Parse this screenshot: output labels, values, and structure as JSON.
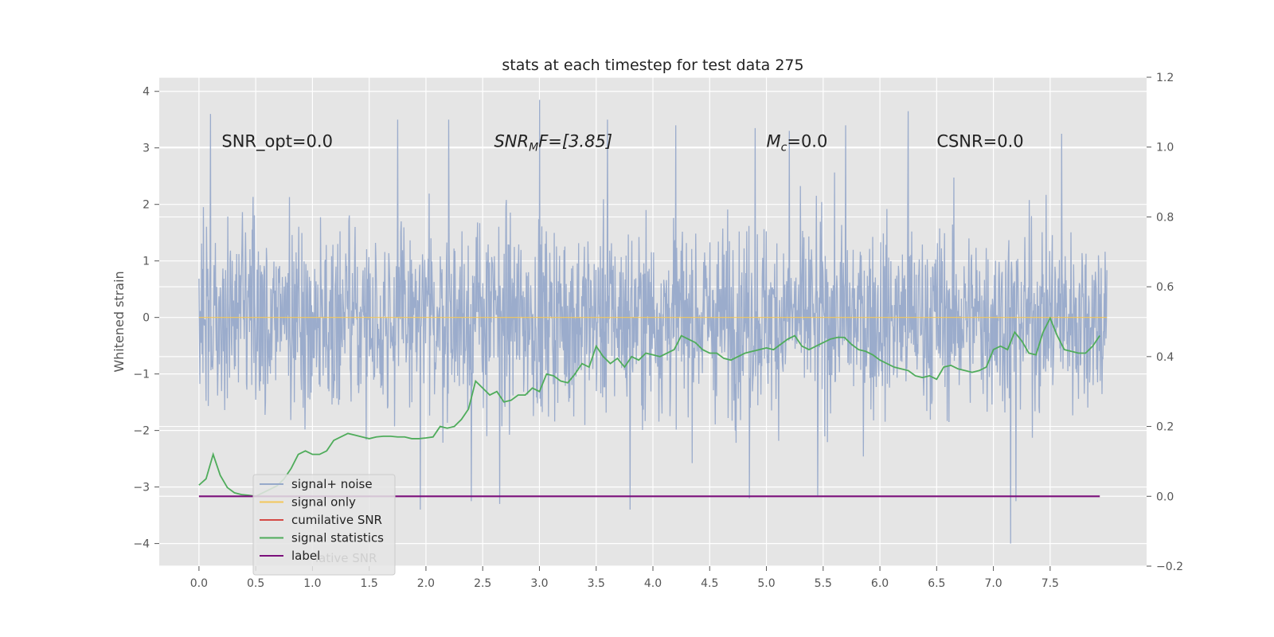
{
  "chart_data": {
    "type": "line",
    "title": "stats at each timestep for test data 275",
    "ylabel": "Whitened strain",
    "xlim": [
      -0.35,
      8.35
    ],
    "ylim": [
      -4.4,
      4.25
    ],
    "y2lim": [
      -0.2,
      1.2
    ],
    "x_ticks": [
      "0.0",
      "0.5",
      "1.0",
      "1.5",
      "2.0",
      "2.5",
      "3.0",
      "3.5",
      "4.0",
      "4.5",
      "5.0",
      "5.5",
      "6.0",
      "6.5",
      "7.0",
      "7.5"
    ],
    "y_ticks": [
      "4",
      "3",
      "2",
      "1",
      "0",
      "−1",
      "−2",
      "−3",
      "−4"
    ],
    "y2_ticks": [
      "1.2",
      "1.0",
      "0.8",
      "0.6",
      "0.4",
      "0.2",
      "0.0",
      "−0.2"
    ],
    "grid": true,
    "legend_placement": "lower-left",
    "annotations": [
      {
        "text": "SNR_opt=0.0",
        "x": 0.2,
        "y": 3.0
      },
      {
        "base": "SNR",
        "sub": "M",
        "rest": "F=[3.85]",
        "x": 2.6,
        "y": 3.0
      },
      {
        "base": "M",
        "sub": "c",
        "rest": "=0.0",
        "x": 5.0,
        "y": 3.0
      },
      {
        "text": "CSNR=0.0",
        "x": 6.5,
        "y": 3.0
      }
    ],
    "series": [
      {
        "name": "signal+ noise",
        "axis": "left",
        "color": "#97a9ca",
        "x_range": [
          0.0,
          8.0
        ],
        "samples": 2048,
        "y_range": [
          -4.0,
          3.85
        ],
        "peaks": [
          [
            0.1,
            3.6
          ],
          [
            1.75,
            3.5
          ],
          [
            2.2,
            3.5
          ],
          [
            3.0,
            3.85
          ],
          [
            3.6,
            3.5
          ],
          [
            4.2,
            3.4
          ],
          [
            4.9,
            3.35
          ],
          [
            5.2,
            3.3
          ],
          [
            5.7,
            3.4
          ],
          [
            6.25,
            3.65
          ],
          [
            7.6,
            3.25
          ]
        ],
        "troughs": [
          [
            1.95,
            -3.4
          ],
          [
            2.4,
            -3.25
          ],
          [
            2.65,
            -3.3
          ],
          [
            3.8,
            -3.4
          ],
          [
            4.85,
            -3.2
          ],
          [
            5.45,
            -3.15
          ],
          [
            7.15,
            -4.0
          ],
          [
            7.2,
            -3.25
          ]
        ]
      },
      {
        "name": "signal only",
        "axis": "left",
        "color": "#f2c75c",
        "x": [
          0.0,
          8.0
        ],
        "values": [
          0.0,
          0.0
        ]
      },
      {
        "name": "cumilative SNR",
        "axis": "right",
        "color": "#d44a45",
        "x": [],
        "values": []
      },
      {
        "name": "signal statistics",
        "axis": "right",
        "color": "#4fac5b",
        "x": [
          0.0,
          0.0625,
          0.125,
          0.1875,
          0.25,
          0.3125,
          0.375,
          0.4375,
          0.5,
          0.5625,
          0.625,
          0.6875,
          0.75,
          0.8125,
          0.875,
          0.9375,
          1.0,
          1.0625,
          1.125,
          1.1875,
          1.25,
          1.3125,
          1.375,
          1.4375,
          1.5,
          1.5625,
          1.625,
          1.6875,
          1.75,
          1.8125,
          1.875,
          1.9375,
          2.0,
          2.0625,
          2.125,
          2.1875,
          2.25,
          2.3125,
          2.375,
          2.4375,
          2.5,
          2.5625,
          2.625,
          2.6875,
          2.75,
          2.8125,
          2.875,
          2.9375,
          3.0,
          3.0625,
          3.125,
          3.1875,
          3.25,
          3.3125,
          3.375,
          3.4375,
          3.5,
          3.5625,
          3.625,
          3.6875,
          3.75,
          3.8125,
          3.875,
          3.9375,
          4.0,
          4.0625,
          4.125,
          4.1875,
          4.25,
          4.3125,
          4.375,
          4.4375,
          4.5,
          4.5625,
          4.625,
          4.6875,
          4.75,
          4.8125,
          4.875,
          4.9375,
          5.0,
          5.0625,
          5.125,
          5.1875,
          5.25,
          5.3125,
          5.375,
          5.4375,
          5.5,
          5.5625,
          5.625,
          5.6875,
          5.75,
          5.8125,
          5.875,
          5.9375,
          6.0,
          6.0625,
          6.125,
          6.1875,
          6.25,
          6.3125,
          6.375,
          6.4375,
          6.5,
          6.5625,
          6.625,
          6.6875,
          6.75,
          6.8125,
          6.875,
          6.9375,
          7.0,
          7.0625,
          7.125,
          7.1875,
          7.25,
          7.3125,
          7.375,
          7.4375,
          7.5,
          7.5625,
          7.625,
          7.6875,
          7.75,
          7.8125,
          7.875,
          7.9375
        ],
        "values": [
          0.032,
          0.05,
          0.12,
          0.06,
          0.025,
          0.01,
          0.005,
          0.003,
          0.0,
          0.01,
          0.02,
          0.03,
          0.05,
          0.08,
          0.12,
          0.13,
          0.12,
          0.12,
          0.13,
          0.16,
          0.17,
          0.18,
          0.175,
          0.17,
          0.165,
          0.17,
          0.172,
          0.172,
          0.17,
          0.17,
          0.165,
          0.165,
          0.167,
          0.17,
          0.2,
          0.195,
          0.2,
          0.22,
          0.25,
          0.33,
          0.31,
          0.29,
          0.3,
          0.27,
          0.275,
          0.29,
          0.29,
          0.31,
          0.3,
          0.35,
          0.345,
          0.33,
          0.325,
          0.35,
          0.38,
          0.37,
          0.43,
          0.4,
          0.38,
          0.395,
          0.37,
          0.4,
          0.39,
          0.41,
          0.405,
          0.4,
          0.41,
          0.42,
          0.46,
          0.45,
          0.44,
          0.42,
          0.41,
          0.41,
          0.395,
          0.39,
          0.4,
          0.41,
          0.415,
          0.42,
          0.425,
          0.42,
          0.435,
          0.45,
          0.46,
          0.43,
          0.42,
          0.43,
          0.44,
          0.45,
          0.455,
          0.455,
          0.435,
          0.42,
          0.415,
          0.405,
          0.39,
          0.38,
          0.37,
          0.365,
          0.36,
          0.345,
          0.34,
          0.345,
          0.335,
          0.37,
          0.375,
          0.365,
          0.36,
          0.355,
          0.36,
          0.37,
          0.42,
          0.43,
          0.42,
          0.47,
          0.445,
          0.41,
          0.405,
          0.47,
          0.51,
          0.46,
          0.42,
          0.415,
          0.41,
          0.41,
          0.43,
          0.46
        ]
      },
      {
        "name": "label",
        "axis": "right",
        "color": "#7b0f7b",
        "x": [
          0.0,
          7.9375
        ],
        "values": [
          0.0,
          0.0
        ]
      }
    ],
    "legend_ghost_text": "lative SNR"
  }
}
